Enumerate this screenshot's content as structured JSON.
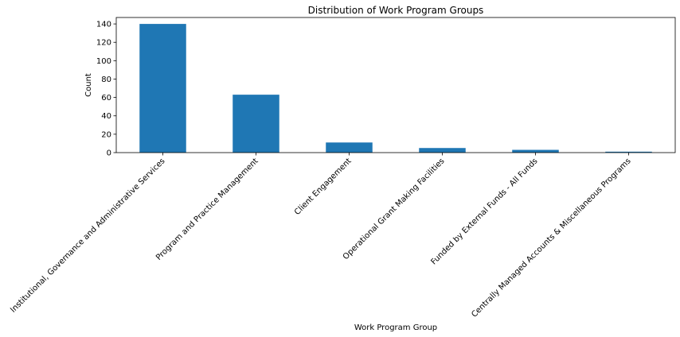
{
  "chart_data": {
    "type": "bar",
    "title": "Distribution of Work Program Groups",
    "xlabel": "Work Program Group",
    "ylabel": "Count",
    "categories": [
      "Institutional, Governance and Administrative Services",
      "Program and Practice Management",
      "Client Engagement",
      "Operational Grant Making Facilities",
      "Funded by External Funds - All Funds",
      "Centrally Managed Accounts & Miscellaneous Programs"
    ],
    "values": [
      140,
      63,
      11,
      5,
      3,
      1
    ],
    "ylim": [
      0,
      147
    ],
    "yticks": [
      0,
      20,
      40,
      60,
      80,
      100,
      120,
      140
    ],
    "bar_color": "#1f77b4",
    "grid": false
  }
}
